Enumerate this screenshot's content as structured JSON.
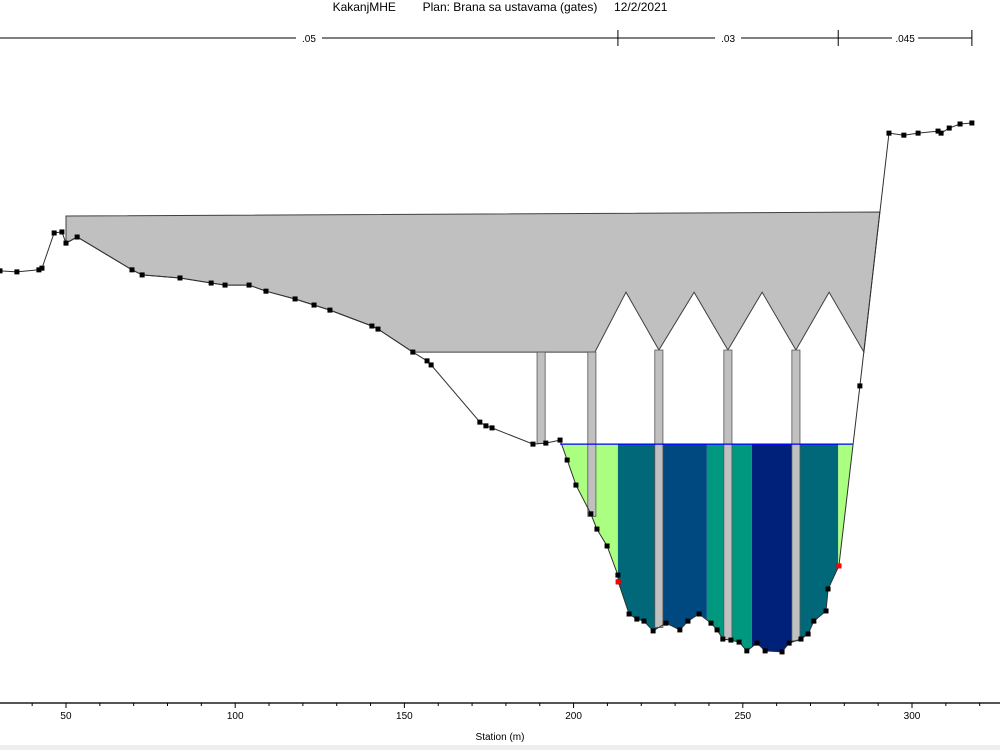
{
  "title": {
    "project": "KakanjMHE",
    "plan": "Plan: Brana sa ustavama (gates)",
    "date": "12/2/2021"
  },
  "chart_data": {
    "type": "area",
    "xlabel": "Station (m)",
    "ylabel": "",
    "xlim": [
      30.5,
      326
    ],
    "x_ticks": [
      50,
      100,
      150,
      200,
      250,
      300
    ],
    "grid": false,
    "legend": "none",
    "ground": [
      [
        30.5,
        127.7
      ],
      [
        35.5,
        127.4
      ],
      [
        42.0,
        128.0
      ],
      [
        42.9,
        128.5
      ],
      [
        46.5,
        138.9
      ],
      [
        48.8,
        139.2
      ],
      [
        50.0,
        135.9
      ],
      [
        53.3,
        137.7
      ],
      [
        69.5,
        128.0
      ],
      [
        72.5,
        126.5
      ],
      [
        83.7,
        125.6
      ],
      [
        92.9,
        124.1
      ],
      [
        97.0,
        123.5
      ],
      [
        104.1,
        123.5
      ],
      [
        109.1,
        121.7
      ],
      [
        117.7,
        119.4
      ],
      [
        123.3,
        117.6
      ],
      [
        128.0,
        116.1
      ],
      [
        140.4,
        111.4
      ],
      [
        142.2,
        110.5
      ],
      [
        152.5,
        103.7
      ],
      [
        156.7,
        101.1
      ],
      [
        157.9,
        99.9
      ],
      [
        172.3,
        83.0
      ],
      [
        174.1,
        81.9
      ],
      [
        175.9,
        81.3
      ],
      [
        188.0,
        76.5
      ],
      [
        191.8,
        76.8
      ],
      [
        196.0,
        77.7
      ],
      [
        198.1,
        71.8
      ],
      [
        200.7,
        64.4
      ],
      [
        205.1,
        55.9
      ],
      [
        206.9,
        51.4
      ],
      [
        209.9,
        46.4
      ],
      [
        213.1,
        37.8
      ],
      [
        213.2,
        35.8
      ],
      [
        216.4,
        26.3
      ],
      [
        218.7,
        24.8
      ],
      [
        220.8,
        24.2
      ],
      [
        223.5,
        21.3
      ],
      [
        227.3,
        23.6
      ],
      [
        231.4,
        21.6
      ],
      [
        233.8,
        24.2
      ],
      [
        237.1,
        26.3
      ],
      [
        240.6,
        23.6
      ],
      [
        242.4,
        21.6
      ],
      [
        244.1,
        18.9
      ],
      [
        246.5,
        18.6
      ],
      [
        248.9,
        18.0
      ],
      [
        251.2,
        15.4
      ],
      [
        254.2,
        17.7
      ],
      [
        256.6,
        15.4
      ],
      [
        261.6,
        15.1
      ],
      [
        263.7,
        17.7
      ],
      [
        267.2,
        18.9
      ],
      [
        269.3,
        20.4
      ],
      [
        271.0,
        24.2
      ],
      [
        274.6,
        27.2
      ],
      [
        275.2,
        33.7
      ],
      [
        278.4,
        40.5
      ],
      [
        284.6,
        93.7
      ],
      [
        293.2,
        168.4
      ],
      [
        297.6,
        167.8
      ],
      [
        301.8,
        168.4
      ],
      [
        307.7,
        169.0
      ],
      [
        308.6,
        168.4
      ],
      [
        311.0,
        169.9
      ],
      [
        314.2,
        171.1
      ],
      [
        317.7,
        171.4
      ]
    ],
    "bank_stations": [
      [
        213.2,
        35.8
      ],
      [
        278.4,
        40.5
      ]
    ],
    "water_surface": {
      "elevation": 76.5,
      "from": 196.0,
      "to": 282.6,
      "color": "#0000ff"
    },
    "bridge_deck": {
      "high_chord": [
        [
          50.0,
          143.9
        ],
        [
          290.5,
          145.1
        ]
      ],
      "low_chord": [
        [
          285.8,
          103.7
        ],
        [
          275.5,
          121.4
        ],
        [
          265.7,
          104.3
        ],
        [
          255.7,
          121.4
        ],
        [
          245.6,
          104.3
        ],
        [
          235.6,
          121.4
        ],
        [
          225.2,
          104.3
        ],
        [
          215.5,
          121.4
        ],
        [
          206.3,
          103.7
        ],
        [
          152.5,
          103.7
        ]
      ],
      "color": "#c0c0c0"
    },
    "piers": [
      {
        "station": 190.4,
        "width": 2.4,
        "top": 103.7
      },
      {
        "station": 205.4,
        "width": 2.4,
        "top": 103.7
      },
      {
        "station": 225.2,
        "width": 2.4,
        "top": 104.3
      },
      {
        "station": 245.6,
        "width": 2.4,
        "top": 104.3
      },
      {
        "station": 265.7,
        "width": 2.4,
        "top": 104.3
      }
    ],
    "flow_subsections": [
      {
        "from": 196.0,
        "to": 213.1,
        "color": "#aaff80"
      },
      {
        "from": 213.1,
        "to": 226.4,
        "color": "#006878"
      },
      {
        "from": 226.4,
        "to": 239.4,
        "color": "#004880"
      },
      {
        "from": 239.4,
        "to": 252.7,
        "color": "#00987f"
      },
      {
        "from": 252.7,
        "to": 265.4,
        "color": "#00217a"
      },
      {
        "from": 265.4,
        "to": 278.2,
        "color": "#006878"
      },
      {
        "from": 278.2,
        "to": 282.6,
        "color": "#aaff80"
      }
    ],
    "mannings_n": [
      {
        "label": ".05",
        "from": 30.5,
        "to": 213.1
      },
      {
        "label": ".03",
        "from": 213.1,
        "to": 278.2
      },
      {
        "label": ".045",
        "from": 278.2,
        "to": 317.7
      }
    ]
  }
}
